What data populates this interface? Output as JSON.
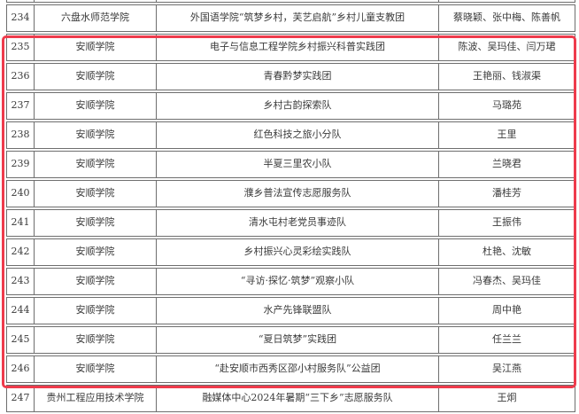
{
  "page": {
    "background_color": "#ffffff",
    "text_color": "#3a3a3a",
    "table_border_color": "#6e6e6e"
  },
  "table": {
    "rows": [
      {
        "num": "234",
        "school": "六盘水师范学院",
        "team": "外国语学院“筑梦乡村，芙艺启航”乡村儿童支教团",
        "advisors": "蔡晓颖、张中梅、陈善帆",
        "highlighted": false
      },
      {
        "num": "235",
        "school": "安顺学院",
        "team": "电子与信息工程学院乡村振兴科普实践团",
        "advisors": "陈波、吴玛佳、闫万珺",
        "highlighted": true
      },
      {
        "num": "236",
        "school": "安顺学院",
        "team": "青春黔梦实践团",
        "advisors": "王艳丽、钱淑渠",
        "highlighted": true
      },
      {
        "num": "237",
        "school": "安顺学院",
        "team": "乡村古韵探索队",
        "advisors": "马璐苑",
        "highlighted": true
      },
      {
        "num": "238",
        "school": "安顺学院",
        "team": "红色科技之旅小分队",
        "advisors": "王里",
        "highlighted": true
      },
      {
        "num": "239",
        "school": "安顺学院",
        "team": "半夏三里农小队",
        "advisors": "兰晓君",
        "highlighted": true
      },
      {
        "num": "240",
        "school": "安顺学院",
        "team": "濮乡普法宣传志愿服务队",
        "advisors": "潘桂芳",
        "highlighted": true
      },
      {
        "num": "241",
        "school": "安顺学院",
        "team": "清水屯村老党员事迹队",
        "advisors": "王振伟",
        "highlighted": true
      },
      {
        "num": "242",
        "school": "安顺学院",
        "team": "乡村振兴心灵彩绘实践队",
        "advisors": "杜艳、沈敏",
        "highlighted": true
      },
      {
        "num": "243",
        "school": "安顺学院",
        "team": "“寻访·探忆·筑梦”观察小队",
        "advisors": "冯春杰、吴玛佳",
        "highlighted": true
      },
      {
        "num": "244",
        "school": "安顺学院",
        "team": "水产先锋联盟队",
        "advisors": "周中艳",
        "highlighted": true
      },
      {
        "num": "245",
        "school": "安顺学院",
        "team": "“夏日筑梦”实践团",
        "advisors": "任兰兰",
        "highlighted": true
      },
      {
        "num": "246",
        "school": "安顺学院",
        "team": "“赴安顺市西秀区邵小村服务队”公益团",
        "advisors": "吴江燕",
        "highlighted": true
      },
      {
        "num": "247",
        "school": "贵州工程应用技术学院",
        "team": "融媒体中心2024年暑期“三下乡”志愿服务队",
        "advisors": "王炯",
        "highlighted": false
      }
    ],
    "highlight": {
      "first_row": "235",
      "last_row": "246",
      "color": "#ee3b4c"
    }
  }
}
